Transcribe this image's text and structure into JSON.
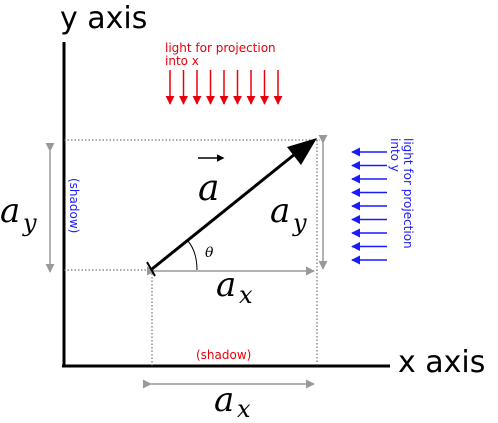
{
  "axes": {
    "x_label": "x axis",
    "y_label": "y axis"
  },
  "vector": {
    "name": "a",
    "angle_symbol": "θ"
  },
  "components": {
    "ax_base": "a",
    "ax_sub": "x",
    "ay_base": "a",
    "ay_sub": "y"
  },
  "light": {
    "x_line1": "light for projection",
    "x_line2": "into x",
    "y_line1": "light for projection",
    "y_line2": "into y"
  },
  "shadow": {
    "x_label": "(shadow)",
    "y_label": "(shadow)"
  },
  "colors": {
    "red": "#e8000b",
    "blue": "#1a1aff",
    "gray": "#999999",
    "black": "#000000"
  }
}
